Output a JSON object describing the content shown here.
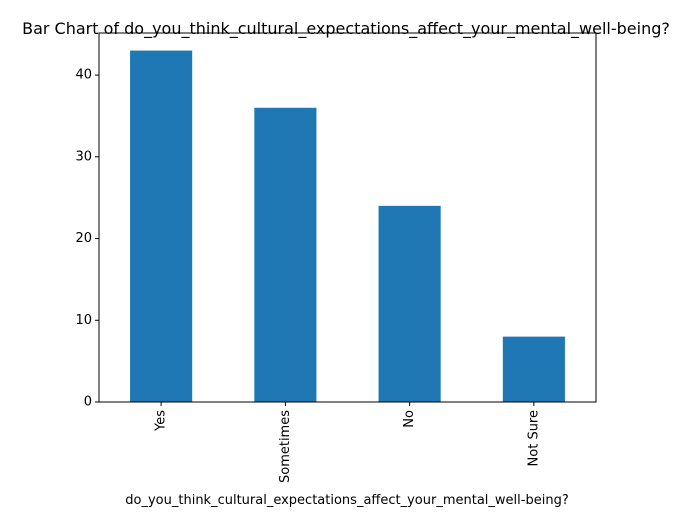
{
  "chart_data": {
    "type": "bar",
    "title": "Bar Chart of do_you_think_cultural_expectations_affect_your_mental_well-being?",
    "xlabel": "do_you_think_cultural_expectations_affect_your_mental_well-being?",
    "ylabel": "",
    "categories": [
      "Yes",
      "Sometimes",
      "No",
      "Not Sure"
    ],
    "values": [
      43,
      36,
      24,
      8
    ],
    "ylim": [
      0,
      45.15
    ],
    "yticks": [
      0,
      10,
      20,
      30,
      40
    ],
    "grid": false,
    "bar_color": "#1f77b4"
  }
}
